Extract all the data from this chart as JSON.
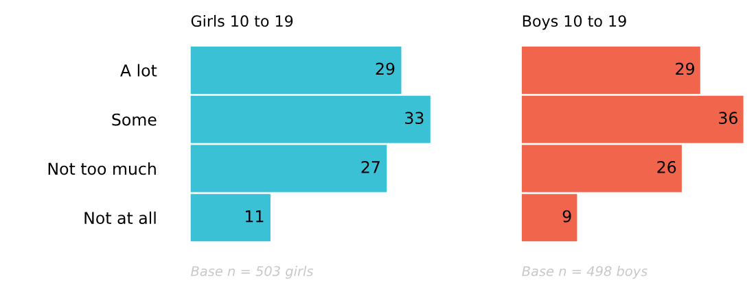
{
  "chart_data": [
    {
      "type": "bar",
      "orientation": "horizontal",
      "title": "Girls 10 to 19",
      "categories": [
        "A lot",
        "Some",
        "Not too much",
        "Not at all"
      ],
      "values": [
        29,
        33,
        27,
        11
      ],
      "color": "#3bc1d6",
      "data_labels": true,
      "tick_labels": "y",
      "grid": false,
      "legend": false,
      "annotations": [
        "Base n = 503 girls"
      ]
    },
    {
      "type": "bar",
      "orientation": "horizontal",
      "title": "Boys 10 to 19",
      "categories": [
        null,
        null,
        null,
        null
      ],
      "values": [
        29,
        36,
        26,
        9
      ],
      "color": "#f0654b",
      "data_labels": true,
      "tick_labels": false,
      "grid": false,
      "legend": false,
      "annotations": [
        "Base n = 498 boys"
      ]
    }
  ]
}
